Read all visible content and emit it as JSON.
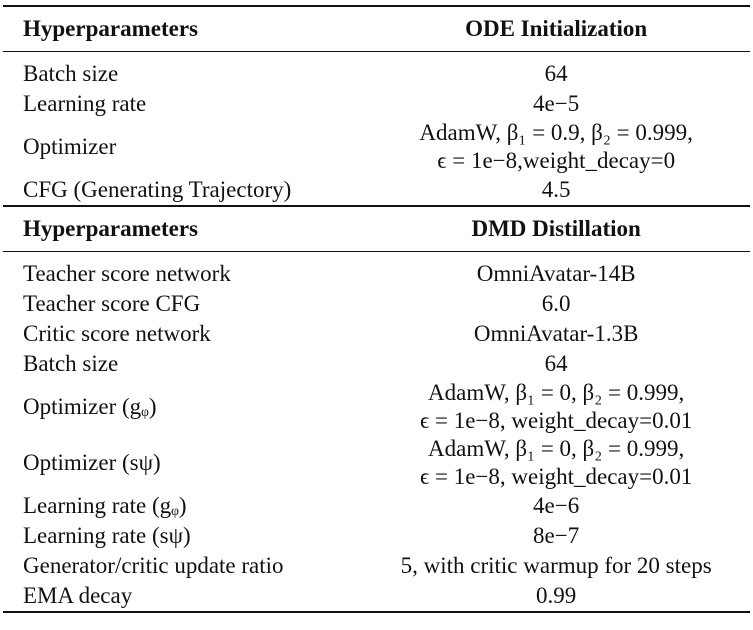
{
  "sections": [
    {
      "header": [
        "Hyperparameters",
        "ODE Initialization"
      ],
      "rows": [
        [
          "Batch size",
          [
            "64"
          ]
        ],
        [
          "Learning rate",
          [
            "4e−5"
          ]
        ],
        [
          "Optimizer",
          [
            "AdamW, β₁ = 0.9, β₂ = 0.999,",
            "ϵ = 1e−8,weight_decay=0"
          ]
        ],
        [
          "CFG (Generating Trajectory)",
          [
            "4.5"
          ]
        ]
      ]
    },
    {
      "header": [
        "Hyperparameters",
        "DMD Distillation"
      ],
      "rows": [
        [
          "Teacher score network",
          [
            "OmniAvatar-14B"
          ]
        ],
        [
          "Teacher score CFG",
          [
            "6.0"
          ]
        ],
        [
          "Critic score network",
          [
            "OmniAvatar-1.3B"
          ]
        ],
        [
          "Batch size",
          [
            "64"
          ]
        ],
        [
          "Optimizer (gᵩ)",
          [
            "AdamW, β₁ = 0, β₂ = 0.999,",
            "ϵ = 1e−8, weight_decay=0.01"
          ]
        ],
        [
          "Optimizer (sψ)",
          [
            "AdamW, β₁ = 0, β₂ = 0.999,",
            "ϵ = 1e−8, weight_decay=0.01"
          ]
        ],
        [
          "Learning rate (gᵩ)",
          [
            "4e−6"
          ]
        ],
        [
          "Learning rate (sψ)",
          [
            "8e−7"
          ]
        ],
        [
          "Generator/critic update ratio",
          [
            "5, with critic warmup for 20 steps"
          ]
        ],
        [
          "EMA decay",
          [
            "0.99"
          ]
        ]
      ]
    }
  ]
}
